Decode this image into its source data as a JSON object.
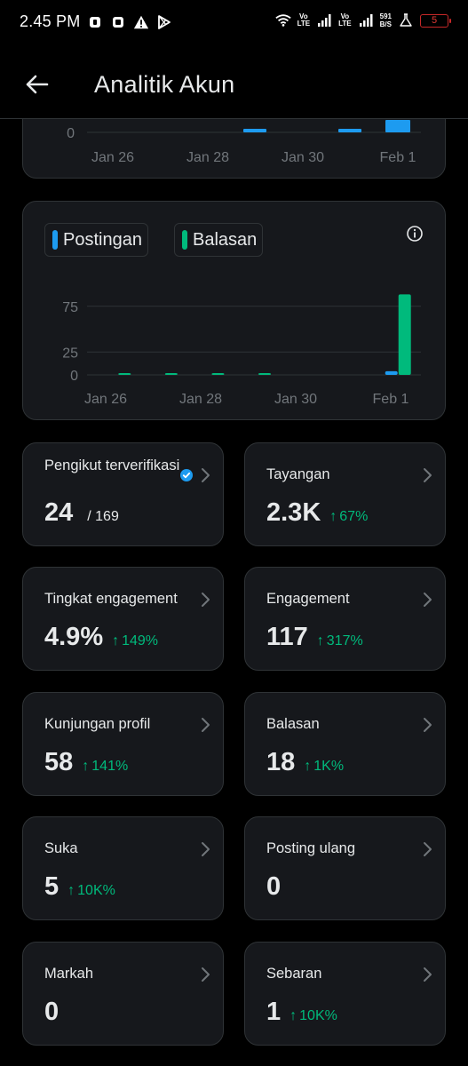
{
  "status_bar": {
    "time": "2.45 PM",
    "lte1": "Vo\nLTE",
    "lte2": "Vo\nLTE",
    "net_speed_value": "591",
    "net_speed_unit": "B/S",
    "battery": "5",
    "icons": [
      "app-notification-icon",
      "app-notification-icon",
      "warning-icon",
      "play-store-icon",
      "wifi-icon",
      "signal-icon",
      "signal-icon",
      "lab-icon",
      "battery-icon"
    ]
  },
  "header": {
    "title": "Analitik Akun"
  },
  "colors": {
    "blue": "#1d9bf0",
    "green": "#00ba7c",
    "card": "#16181c",
    "border": "#2f3336"
  },
  "top_chart": {
    "chart_data": {
      "type": "bar",
      "y_ticks": [
        "0"
      ],
      "x_ticks": [
        "Jan 26",
        "Jan 28",
        "Jan 30",
        "Feb 1"
      ],
      "note": ""
    }
  },
  "chart_data": {
    "type": "bar",
    "categories": [
      "Jan 26",
      "Jan 27",
      "Jan 28",
      "Jan 29",
      "Jan 30",
      "Jan 31",
      "Feb 1"
    ],
    "x_tick_labels": [
      "Jan 26",
      "Jan 28",
      "Jan 30",
      "Feb 1"
    ],
    "y_tick_labels": [
      "75",
      "25",
      "0"
    ],
    "ylim": [
      0,
      100
    ],
    "series": [
      {
        "name": "Postingan",
        "color": "#1d9bf0",
        "values": [
          0,
          0,
          0,
          0,
          0,
          0,
          4
        ]
      },
      {
        "name": "Balasan",
        "color": "#00ba7c",
        "values": [
          1,
          1,
          1,
          1,
          0,
          0,
          88
        ]
      }
    ]
  },
  "legend": {
    "postingan": "Postingan",
    "balasan": "Balasan"
  },
  "stats": [
    {
      "label": "Pengikut terverifikasi",
      "value": "24",
      "sub": "/ 169",
      "delta": "",
      "verified": true
    },
    {
      "label": "Tayangan",
      "value": "2.3K",
      "sub": "",
      "delta": "67%"
    },
    {
      "label": "Tingkat engagement",
      "value": "4.9%",
      "sub": "",
      "delta": "149%"
    },
    {
      "label": "Engagement",
      "value": "117",
      "sub": "",
      "delta": "317%"
    },
    {
      "label": "Kunjungan profil",
      "value": "58",
      "sub": "",
      "delta": "141%"
    },
    {
      "label": "Balasan",
      "value": "18",
      "sub": "",
      "delta": "1K%"
    },
    {
      "label": "Suka",
      "value": "5",
      "sub": "",
      "delta": "10K%"
    },
    {
      "label": "Posting ulang",
      "value": "0",
      "sub": "",
      "delta": ""
    },
    {
      "label": "Markah",
      "value": "0",
      "sub": "",
      "delta": ""
    },
    {
      "label": "Sebaran",
      "value": "1",
      "sub": "",
      "delta": "10K%"
    }
  ]
}
